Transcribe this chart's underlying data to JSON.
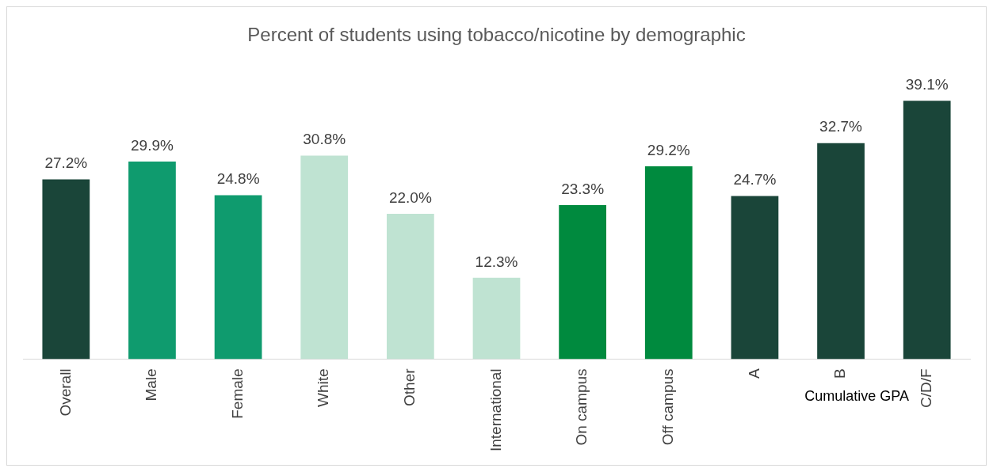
{
  "chart_data": {
    "type": "bar",
    "title": "Percent of students using tobacco/nicotine by demographic",
    "categories": [
      "Overall",
      "Male",
      "Female",
      "White",
      "Other",
      "International",
      "On campus",
      "Off campus",
      "A",
      "B",
      "C/D/F"
    ],
    "values": [
      27.2,
      29.9,
      24.8,
      30.8,
      22.0,
      12.3,
      23.3,
      29.2,
      24.7,
      32.7,
      39.1
    ],
    "colors": [
      "#1a4539",
      "#0f9b6e",
      "#0f9b6e",
      "#bfe3d2",
      "#bfe3d2",
      "#bfe3d2",
      "#008a3e",
      "#008a3e",
      "#1a4539",
      "#1a4539",
      "#1a4539"
    ],
    "value_labels": [
      "27.2%",
      "29.9%",
      "24.8%",
      "30.8%",
      "22.0%",
      "12.3%",
      "23.3%",
      "29.2%",
      "24.7%",
      "32.7%",
      "39.1%"
    ],
    "annotations": [
      "Cumulative GPA"
    ],
    "grid": false,
    "legend": false
  }
}
